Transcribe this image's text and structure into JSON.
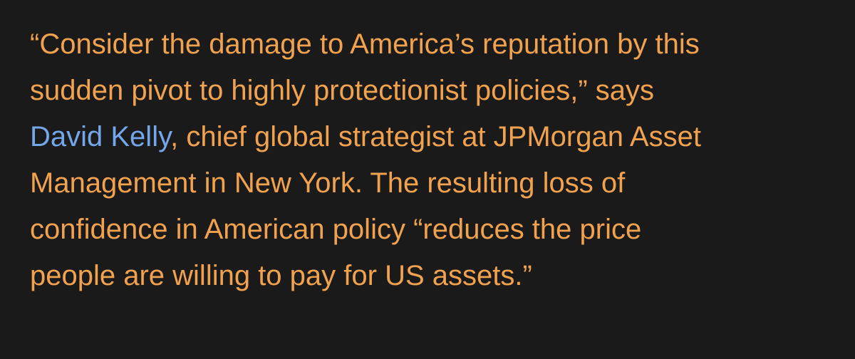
{
  "paragraph": {
    "lines": [
      "“Consider the damage to America’s reputation by this",
      "sudden pivot to highly protectionist policies,” says",
      {
        "link": "David Kelly",
        "text": ", chief global strategist at JPMorgan Asset"
      },
      "Management in New York. The resulting loss of",
      "confidence in American policy “reduces the price",
      "people are willing to pay for US assets.”"
    ]
  }
}
